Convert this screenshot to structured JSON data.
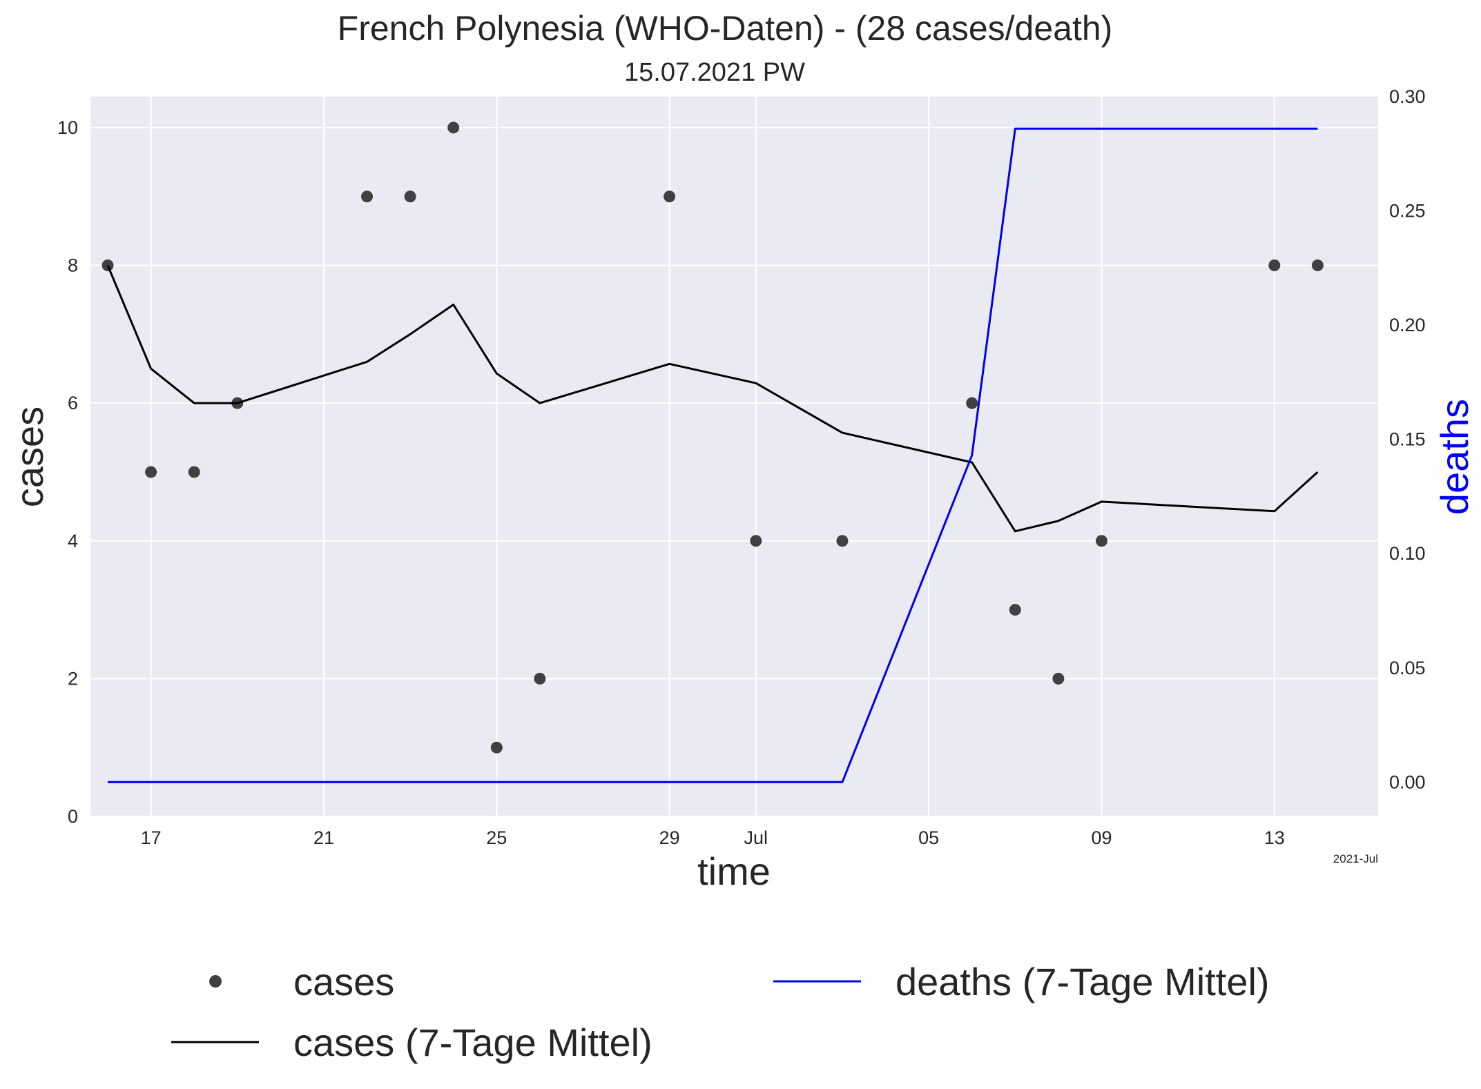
{
  "chart_data": {
    "type": "line",
    "title": "French Polynesia (WHO-Daten) - (28 cases/death)",
    "subtitle": "15.07.2021 PW",
    "xlabel": "time",
    "ylabel": "cases",
    "y2label": "deaths",
    "x_offset_label": "2021-Jul",
    "grid": true,
    "legend_placement": "below",
    "x": [
      "2021-06-16",
      "2021-06-17",
      "2021-06-18",
      "2021-06-19",
      "2021-06-22",
      "2021-06-23",
      "2021-06-24",
      "2021-06-25",
      "2021-06-26",
      "2021-06-29",
      "2021-07-01",
      "2021-07-03",
      "2021-07-06",
      "2021-07-07",
      "2021-07-08",
      "2021-07-09",
      "2021-07-13",
      "2021-07-14"
    ],
    "xlim": [
      "2021-06-15.6",
      "2021-07-15.4"
    ],
    "x_ticks": [
      {
        "date": "2021-06-17",
        "label": "17"
      },
      {
        "date": "2021-06-21",
        "label": "21"
      },
      {
        "date": "2021-06-25",
        "label": "25"
      },
      {
        "date": "2021-06-29",
        "label": "29"
      },
      {
        "date": "2021-07-01",
        "label": "Jul"
      },
      {
        "date": "2021-07-05",
        "label": "05"
      },
      {
        "date": "2021-07-09",
        "label": "09"
      },
      {
        "date": "2021-07-13",
        "label": "13"
      }
    ],
    "ylim": [
      0,
      10.45
    ],
    "y_ticks": [
      "0",
      "2",
      "4",
      "6",
      "8",
      "10"
    ],
    "y2lim": [
      -0.015,
      0.3
    ],
    "y2_ticks": [
      "0.00",
      "0.05",
      "0.10",
      "0.15",
      "0.20",
      "0.25",
      "0.30"
    ],
    "series": [
      {
        "name": "cases",
        "kind": "scatter",
        "axis": "left",
        "color": "#404040",
        "values": [
          8,
          5,
          5,
          6,
          9,
          9,
          10,
          1,
          2,
          9,
          4,
          4,
          6,
          3,
          2,
          4,
          8,
          8
        ]
      },
      {
        "name": "cases (7-Tage Mittel)",
        "kind": "line",
        "axis": "left",
        "color": "#000000",
        "values": [
          8,
          6.5,
          6,
          6,
          6.6,
          7,
          7.43,
          6.43,
          6,
          6.57,
          6.29,
          5.57,
          5.14,
          4.14,
          4.29,
          4.57,
          4.43,
          5
        ]
      },
      {
        "name": "deaths (7-Tage Mittel)",
        "kind": "line",
        "axis": "right",
        "color": "#0000ee",
        "values": [
          0,
          0,
          0,
          0,
          0,
          0,
          0,
          0,
          0,
          0,
          0,
          0,
          0.143,
          0.286,
          0.286,
          0.286,
          0.286,
          0.286
        ]
      }
    ],
    "colors": {
      "background": "#eaeaf2",
      "grid": "#ffffff",
      "deaths_label": "#0000ff"
    }
  }
}
